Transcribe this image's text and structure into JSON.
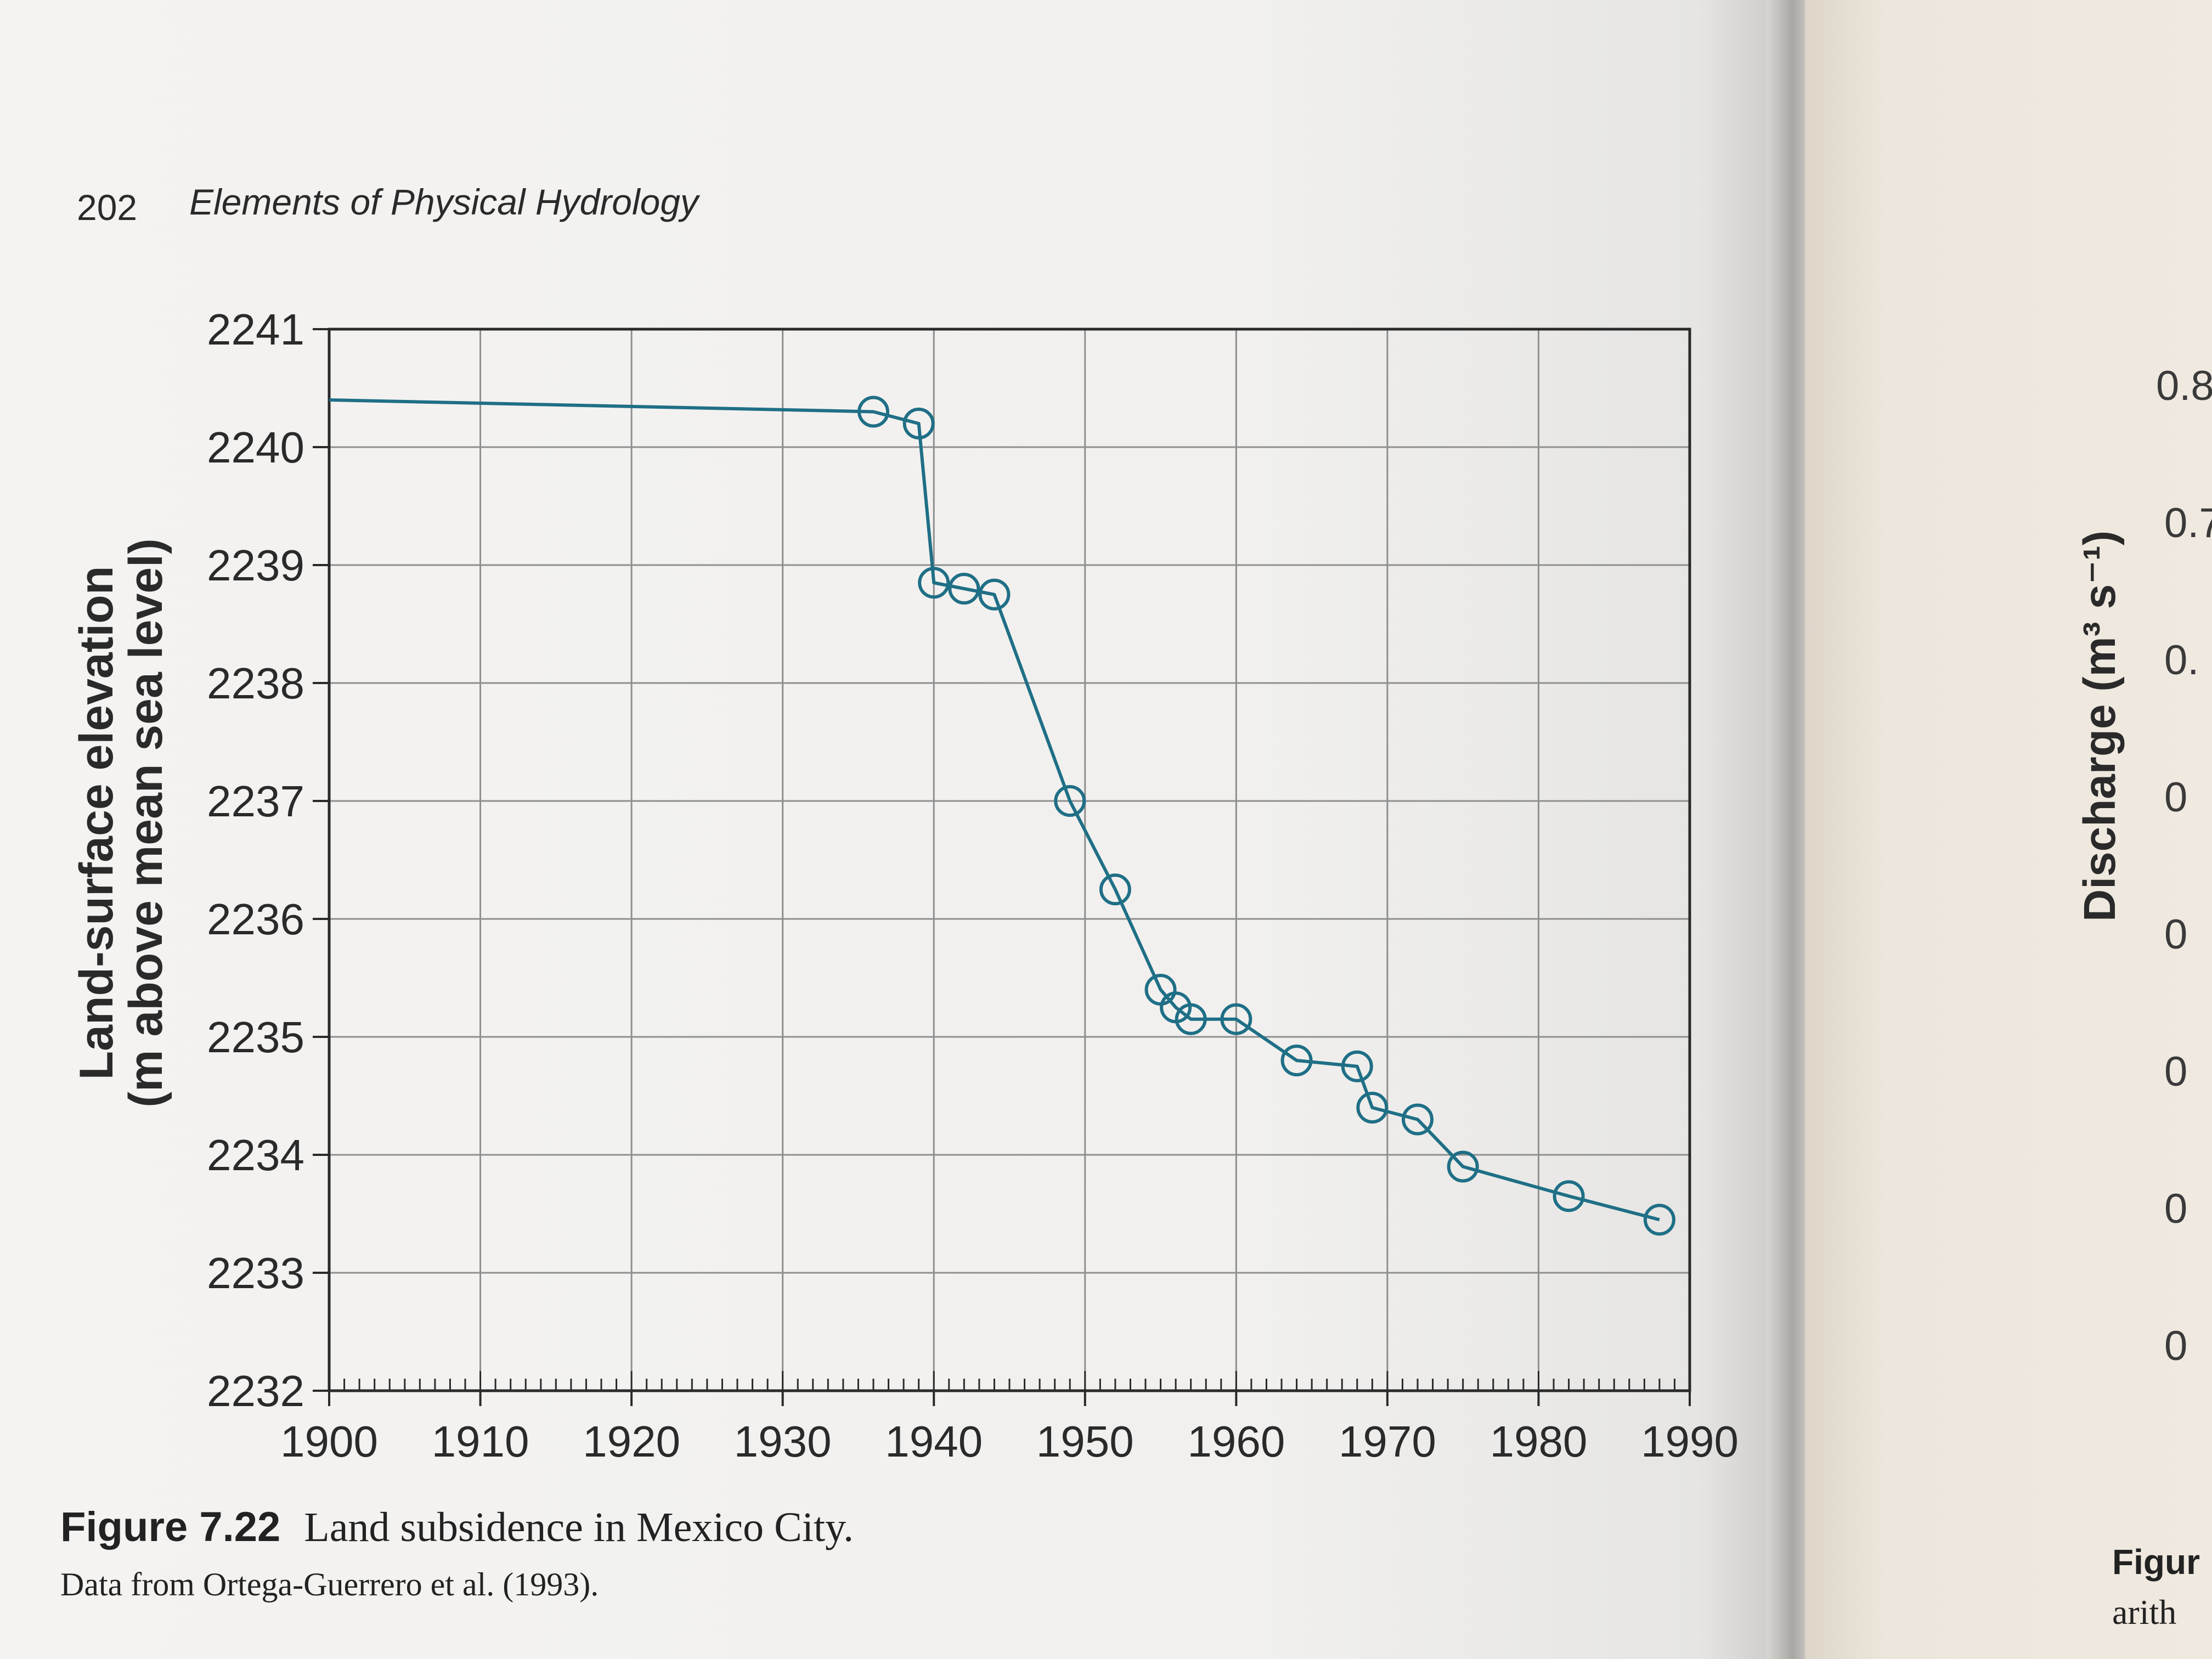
{
  "page_header": {
    "page_number": "202",
    "book_title": "Elements of Physical Hydrology"
  },
  "chart_data": {
    "type": "line",
    "title": "",
    "xlabel": "",
    "ylabel_line1": "Land-surface elevation",
    "ylabel_line2": "(m above mean sea level)",
    "xlim": [
      1900,
      1990
    ],
    "ylim": [
      2232,
      2241
    ],
    "x_ticks": [
      1900,
      1910,
      1920,
      1930,
      1940,
      1950,
      1960,
      1970,
      1980,
      1990
    ],
    "y_ticks": [
      2232,
      2233,
      2234,
      2235,
      2236,
      2237,
      2238,
      2239,
      2240,
      2241
    ],
    "grid": true,
    "line_color": "#1f6f86",
    "series": [
      {
        "name": "",
        "points": [
          {
            "x": 1900,
            "y": 2240.4,
            "marker": false
          },
          {
            "x": 1936,
            "y": 2240.3,
            "marker": true
          },
          {
            "x": 1939,
            "y": 2240.2,
            "marker": true
          },
          {
            "x": 1940,
            "y": 2238.85,
            "marker": true
          },
          {
            "x": 1942,
            "y": 2238.8,
            "marker": true
          },
          {
            "x": 1944,
            "y": 2238.75,
            "marker": true
          },
          {
            "x": 1949,
            "y": 2237.0,
            "marker": true
          },
          {
            "x": 1952,
            "y": 2236.25,
            "marker": true
          },
          {
            "x": 1955,
            "y": 2235.4,
            "marker": true
          },
          {
            "x": 1956,
            "y": 2235.25,
            "marker": true
          },
          {
            "x": 1957,
            "y": 2235.15,
            "marker": true
          },
          {
            "x": 1960,
            "y": 2235.15,
            "marker": true
          },
          {
            "x": 1964,
            "y": 2234.8,
            "marker": true
          },
          {
            "x": 1968,
            "y": 2234.75,
            "marker": true
          },
          {
            "x": 1969,
            "y": 2234.4,
            "marker": true
          },
          {
            "x": 1972,
            "y": 2234.3,
            "marker": true
          },
          {
            "x": 1975,
            "y": 2233.9,
            "marker": true
          },
          {
            "x": 1982,
            "y": 2233.65,
            "marker": true
          },
          {
            "x": 1988,
            "y": 2233.45,
            "marker": true
          }
        ]
      }
    ]
  },
  "caption": {
    "figure_label": "Figure 7.22",
    "text": "Land subsidence in Mexico City.",
    "source": "Data from Ortega-Guerrero et al. (1993)."
  },
  "facing_page": {
    "axis_title": "Discharge (m³ s⁻¹)",
    "tick_fragments": [
      "0.8",
      "0.7",
      "0.",
      "0",
      "0",
      "0",
      "0",
      "0"
    ],
    "caption_fragment_1": "Figur",
    "caption_fragment_2": "arith"
  }
}
